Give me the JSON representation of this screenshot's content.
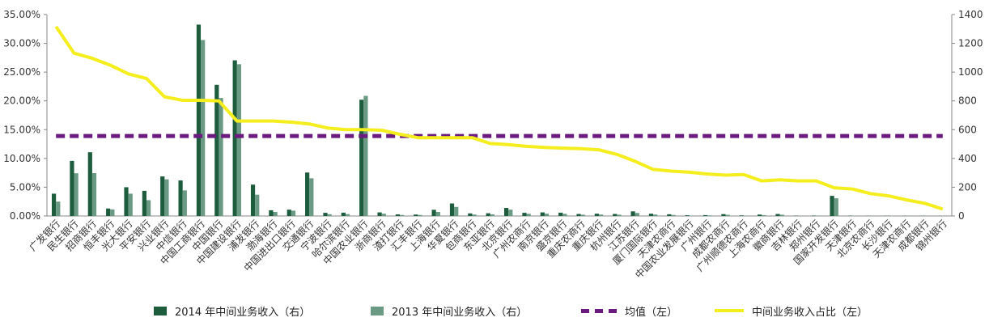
{
  "chart_data": {
    "type": "bar",
    "categories": [
      "广发银行",
      "民生银行",
      "招商银行",
      "恒丰银行",
      "光大银行",
      "平安银行",
      "兴业银行",
      "中信银行",
      "中国工商银行",
      "中国银行",
      "中国建设银行",
      "浦发银行",
      "渤海银行",
      "中国进出口银行",
      "交通银行",
      "宁波银行",
      "哈尔滨银行",
      "中国农业银行",
      "浙商银行",
      "渣打银行",
      "汇丰银行",
      "上海银行",
      "华夏银行",
      "包商银行",
      "东亚银行",
      "北京银行",
      "广州农商行",
      "南京银行",
      "盛京银行",
      "重庆农商行",
      "重庆银行",
      "杭州银行",
      "江苏银行",
      "厦门国际银行",
      "天津农商行",
      "中国农业发展银行",
      "广州银行",
      "成都农商行",
      "广州顺德农商行",
      "上海农商行",
      "徽商银行",
      "吉林银行",
      "郑州银行",
      "国家开发银行",
      "天津银行",
      "北京农商行",
      "长沙银行",
      "天津农商行",
      "成都银行",
      "锦州银行"
    ],
    "series": [
      {
        "name": "2014 年中间业务收入（右）",
        "type": "bar",
        "axis": "right",
        "color": "#1e5c3e",
        "values": [
          155,
          383,
          443,
          52,
          200,
          175,
          275,
          247,
          1330,
          912,
          1082,
          218,
          40,
          44,
          302,
          22,
          23,
          808,
          25,
          11,
          10,
          43,
          87,
          18,
          19,
          56,
          22,
          25,
          23,
          14,
          16,
          14,
          32,
          16,
          12,
          5,
          6,
          13,
          4,
          10,
          14,
          2,
          3,
          140,
          2,
          1,
          1,
          1,
          1,
          1
        ]
      },
      {
        "name": "2013 年中间业务收入（右）",
        "type": "bar",
        "axis": "right",
        "color": "#6a9a84",
        "values": [
          100,
          297,
          298,
          45,
          155,
          110,
          255,
          178,
          1223,
          820,
          1055,
          148,
          28,
          37,
          262,
          12,
          13,
          835,
          16,
          7,
          7,
          28,
          63,
          10,
          11,
          44,
          15,
          16,
          15,
          9,
          10,
          9,
          21,
          10,
          7,
          3,
          4,
          8,
          3,
          6,
          9,
          1,
          2,
          123,
          1,
          1,
          1,
          1,
          1,
          1
        ]
      },
      {
        "name": "均值（左）",
        "type": "line",
        "axis": "left",
        "color": "#6b1b7d",
        "dash": true,
        "values": [
          0.139,
          0.139,
          0.139,
          0.139,
          0.139,
          0.139,
          0.139,
          0.139,
          0.139,
          0.139,
          0.139,
          0.139,
          0.139,
          0.139,
          0.139,
          0.139,
          0.139,
          0.139,
          0.139,
          0.139,
          0.139,
          0.139,
          0.139,
          0.139,
          0.139,
          0.139,
          0.139,
          0.139,
          0.139,
          0.139,
          0.139,
          0.139,
          0.139,
          0.139,
          0.139,
          0.139,
          0.139,
          0.139,
          0.139,
          0.139,
          0.139,
          0.139,
          0.139,
          0.139,
          0.139,
          0.139,
          0.139,
          0.139,
          0.139,
          0.139
        ]
      },
      {
        "name": "中间业务收入占比（左）",
        "type": "line",
        "axis": "left",
        "color": "#f5ee1e",
        "values": [
          0.329,
          0.283,
          0.274,
          0.262,
          0.247,
          0.239,
          0.207,
          0.201,
          0.201,
          0.2,
          0.165,
          0.165,
          0.165,
          0.163,
          0.16,
          0.153,
          0.15,
          0.15,
          0.149,
          0.142,
          0.136,
          0.136,
          0.136,
          0.136,
          0.126,
          0.124,
          0.121,
          0.119,
          0.118,
          0.117,
          0.115,
          0.107,
          0.095,
          0.081,
          0.078,
          0.076,
          0.073,
          0.071,
          0.072,
          0.061,
          0.063,
          0.061,
          0.061,
          0.049,
          0.047,
          0.039,
          0.035,
          0.028,
          0.022,
          0.012
        ]
      }
    ],
    "y_left": {
      "ticks": [
        "0.00%",
        "5.00%",
        "10.00%",
        "15.00%",
        "20.00%",
        "25.00%",
        "30.00%",
        "35.00%"
      ],
      "range": [
        0,
        0.35
      ]
    },
    "y_right": {
      "ticks": [
        "0",
        "200",
        "400",
        "600",
        "800",
        "1000",
        "1200",
        "1400"
      ],
      "range": [
        0,
        1400
      ]
    },
    "grid": false,
    "legend_position": "bottom"
  }
}
